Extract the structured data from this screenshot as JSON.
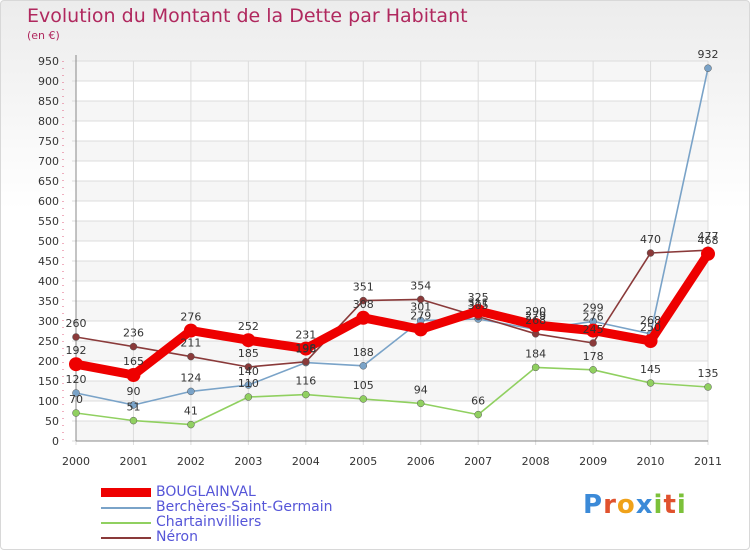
{
  "header": {
    "title": "Evolution du Montant de la Dette par Habitant",
    "subtitle": "(en €)"
  },
  "logo": {
    "letters": [
      "P",
      "r",
      "o",
      "x",
      "i",
      "t",
      "i"
    ],
    "colors": [
      "#3b8ad8",
      "#e0522e",
      "#f0a21a",
      "#3b8ad8",
      "#7cc13a",
      "#e0522e",
      "#7cc13a"
    ]
  },
  "chart_data": {
    "type": "line",
    "title": "Evolution du Montant de la Dette par Habitant",
    "ylabel": "(en €)",
    "xlabel": "",
    "x": [
      2000,
      2001,
      2002,
      2003,
      2004,
      2005,
      2006,
      2007,
      2008,
      2009,
      2010,
      2011
    ],
    "ylim": [
      0,
      950
    ],
    "yticks": [
      0,
      50,
      100,
      150,
      200,
      250,
      300,
      350,
      400,
      450,
      500,
      550,
      600,
      650,
      700,
      750,
      800,
      850,
      900,
      950
    ],
    "grid": true,
    "legend_position": "bottom-left",
    "series": [
      {
        "name": "BOUGLAINVAL",
        "color": "#ee0000",
        "values": [
          192,
          165,
          276,
          252,
          231,
          308,
          279,
          325,
          290,
          276,
          250,
          468
        ]
      },
      {
        "name": "Berchères-Saint-Germain",
        "color": "#7aa3c8",
        "values": [
          120,
          90,
          124,
          140,
          196,
          188,
          301,
          305,
          279,
          299,
          268,
          932
        ]
      },
      {
        "name": "Chartainvilliers",
        "color": "#90d060",
        "values": [
          70,
          51,
          41,
          110,
          116,
          105,
          94,
          66,
          184,
          178,
          145,
          135
        ]
      },
      {
        "name": "Néron",
        "color": "#8a3a3a",
        "values": [
          260,
          236,
          211,
          185,
          198,
          351,
          354,
          311,
          268,
          245,
          470,
          477
        ]
      }
    ]
  }
}
